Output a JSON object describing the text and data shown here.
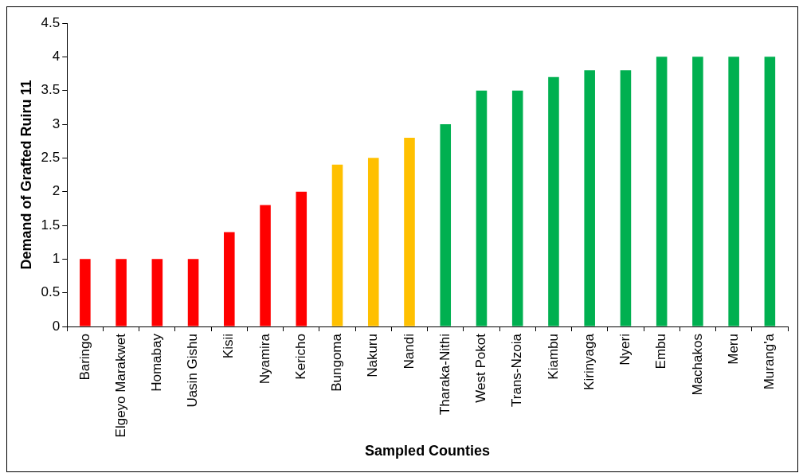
{
  "chart_data": {
    "type": "bar",
    "xlabel": "Sampled Counties",
    "ylabel": "Demand of Grafted Ruiru 11",
    "categories": [
      "Baringo",
      "Elgeyo Marakwet",
      "Homabay",
      "Uasin Gishu",
      "Kisii",
      "Nyamira",
      "Kericho",
      "Bungoma",
      "Nakuru",
      "Nandi",
      "Tharaka-Nithi",
      "West Pokot",
      "Trans-Nzoia",
      "Kiambu",
      "Kirinyaga",
      "Nyeri",
      "Embu",
      "Machakos",
      "Meru",
      "Murang'a"
    ],
    "values": [
      1,
      1,
      1,
      1,
      1.4,
      1.8,
      2,
      2.4,
      2.5,
      2.8,
      3,
      3.5,
      3.5,
      3.7,
      3.8,
      3.8,
      4,
      4,
      4,
      4
    ],
    "colors": [
      "#ff0000",
      "#ff0000",
      "#ff0000",
      "#ff0000",
      "#ff0000",
      "#ff0000",
      "#ff0000",
      "#ffc000",
      "#ffc000",
      "#ffc000",
      "#00b050",
      "#00b050",
      "#00b050",
      "#00b050",
      "#00b050",
      "#00b050",
      "#00b050",
      "#00b050",
      "#00b050",
      "#00b050"
    ],
    "ylim": [
      0,
      4.5
    ],
    "yticks": [
      0,
      0.5,
      1,
      1.5,
      2,
      2.5,
      3,
      3.5,
      4,
      4.5
    ],
    "grid": false,
    "legend": false
  }
}
